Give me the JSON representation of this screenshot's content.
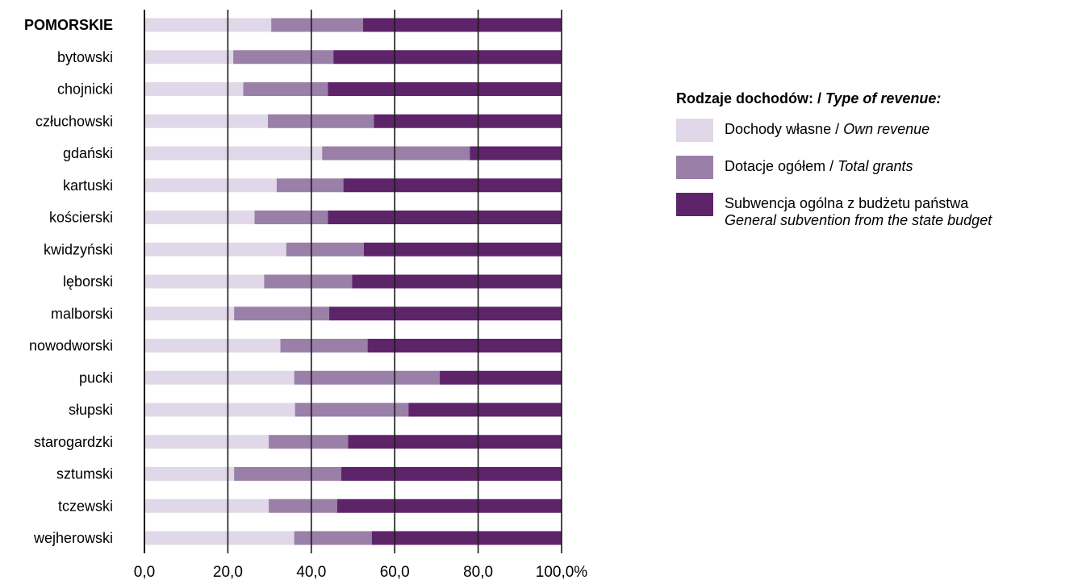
{
  "chart_data": {
    "type": "bar",
    "orientation": "horizontal",
    "stacked": true,
    "title": "",
    "xlabel": "",
    "ylabel": "",
    "xlim": [
      0,
      100
    ],
    "x_ticks": [
      "0,0",
      "20,0",
      "40,0",
      "60,0",
      "80,0",
      "100,0%"
    ],
    "x_tick_values": [
      0,
      20,
      40,
      60,
      80,
      100
    ],
    "grid": "vertical",
    "legend_placement": "right",
    "categories": [
      "POMORSKIE",
      "bytowski",
      "chojnicki",
      "człuchowski",
      "gdański",
      "kartuski",
      "kościerski",
      "kwidzyński",
      "lęborski",
      "malborski",
      "nowodworski",
      "pucki",
      "słupski",
      "starogardzki",
      "sztumski",
      "tczewski",
      "wejherowski"
    ],
    "emphasized_category": "POMORSKIE",
    "series": [
      {
        "name": "Dochody własne / Own revenue",
        "color": "#e0d8e8",
        "values": [
          30.4,
          21.3,
          23.7,
          29.6,
          42.6,
          31.7,
          26.4,
          34.0,
          28.7,
          21.5,
          32.6,
          35.9,
          36.1,
          29.8,
          21.5,
          29.8,
          35.9
        ]
      },
      {
        "name": "Dotacje ogółem / Total grants",
        "color": "#9a7fa8",
        "values": [
          22.0,
          24.0,
          20.3,
          25.4,
          35.4,
          16.0,
          17.6,
          18.6,
          21.1,
          22.8,
          20.9,
          34.9,
          27.2,
          19.0,
          25.7,
          16.4,
          18.6
        ]
      },
      {
        "name": "Subwencja ogólna z budżetu państwa / General subvention from the state budget",
        "color": "#5e2469",
        "values": [
          47.6,
          54.7,
          56.0,
          45.0,
          22.0,
          52.3,
          56.0,
          47.4,
          50.2,
          55.7,
          46.5,
          29.2,
          36.7,
          51.2,
          52.8,
          53.8,
          45.5
        ]
      }
    ]
  },
  "legend": {
    "title_main": "Rodzaje dochodów: / ",
    "title_italic": "Type of revenue:",
    "items": [
      {
        "label": "Dochody własne / ",
        "label_italic": "Own revenue",
        "color": "#e0d8e8"
      },
      {
        "label": "Dotacje ogółem / ",
        "label_italic": "Total grants",
        "color": "#9a7fa8"
      },
      {
        "label": "Subwencja ogólna z budżetu państwa",
        "label_italic": "General subvention from the state budget",
        "color": "#5e2469",
        "two_line": true
      }
    ]
  }
}
